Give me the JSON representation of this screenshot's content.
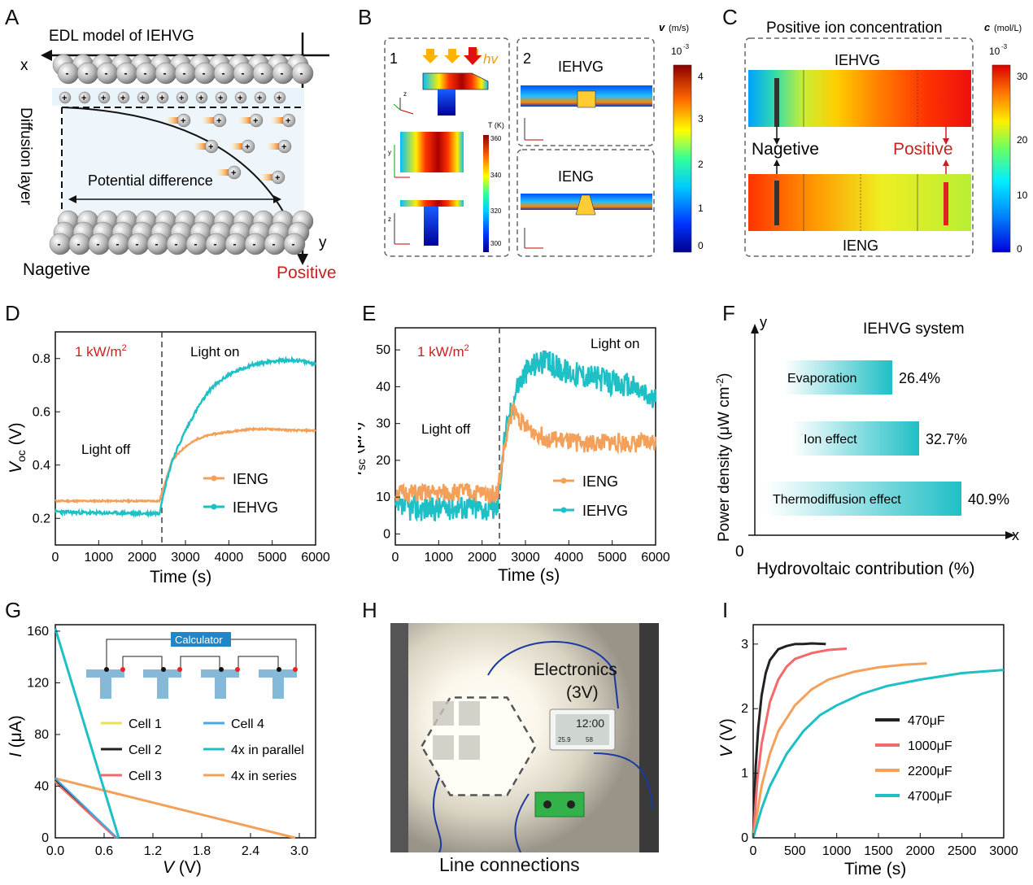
{
  "labels": {
    "A": "A",
    "B": "B",
    "C": "C",
    "D": "D",
    "E": "E",
    "F": "F",
    "G": "G",
    "H": "H",
    "I": "I"
  },
  "panelA": {
    "title": "EDL model of IEHVG",
    "x": "x",
    "y": "y",
    "diffusion": "Diffusion layer",
    "potential": "Potential difference",
    "negative": "Nagetive",
    "positive": "Positive"
  },
  "panelB": {
    "sub1": "1",
    "sub2": "2",
    "hv": "hv",
    "iehvg": "IEHVG",
    "ieng": "IENG",
    "tunit": "T (K)",
    "tticks": [
      "360",
      "340",
      "320",
      "300"
    ],
    "vunit": "(m/s)",
    "vsym": "v",
    "vexp": "10",
    "vexpsup": "-3",
    "vticks": [
      "4",
      "3",
      "2",
      "1",
      "0"
    ],
    "axis": {
      "x": "x",
      "y": "y",
      "z": "z"
    }
  },
  "panelC": {
    "title": "Positive ion concentration",
    "csym": "c",
    "cunit": "(mol/L)",
    "cexp": "10",
    "cexpsup": "-3",
    "cticks": [
      "30",
      "20",
      "10",
      "0"
    ],
    "iehvg": "IEHVG",
    "ieng": "IENG",
    "negative": "Nagetive",
    "positive": "Positive"
  },
  "panelD": {
    "ylabel_main": "V",
    "ylabel_sub": "oc",
    "ylabel_unit": " (V)",
    "xlabel": "Time (s)",
    "intensity": "1 kW/m",
    "intensity_sup": "2",
    "light_on": "Light on",
    "light_off": "Light off",
    "xticks": [
      "0",
      "1000",
      "2000",
      "3000",
      "4000",
      "5000",
      "6000"
    ],
    "yticks": [
      "0.2",
      "0.4",
      "0.6",
      "0.8"
    ]
  },
  "panelE": {
    "ylabel_main": "I",
    "ylabel_sub": "sc",
    "ylabel_unit": " (μA)",
    "xlabel": "Time (s)",
    "intensity": "1 kW/m",
    "intensity_sup": "2",
    "light_on": "Light on",
    "light_off": "Light off",
    "xticks": [
      "0",
      "1000",
      "2000",
      "3000",
      "4000",
      "5000",
      "6000"
    ],
    "yticks": [
      "0",
      "10",
      "20",
      "30",
      "40",
      "50"
    ]
  },
  "panelF": {
    "title": "IEHVG system",
    "ylabel": "Power density (μW cm",
    "ylabel_sup": "-2",
    "ylabel_end": ")",
    "xlabel": "Hydrovoltaic  contribution (%)",
    "origin": "0",
    "x": "x",
    "y": "y"
  },
  "panelG": {
    "xlabel": "V",
    "xunit": " (V)",
    "ylabel": "I",
    "yunit": " (μA)",
    "calculator": "Calculator",
    "xticks": [
      "0.0",
      "0.6",
      "1.2",
      "1.8",
      "2.4",
      "3.0"
    ],
    "yticks": [
      "0",
      "40",
      "80",
      "120",
      "160"
    ]
  },
  "panelH": {
    "electronics": "Electronics",
    "voltage": "(3V)",
    "caption": "Line connections",
    "lcd_main": "12:00",
    "lcd_t": "25.9",
    "lcd_h": "58"
  },
  "panelI": {
    "xlabel": "Time (s)",
    "ylabel": "V",
    "yunit": " (V)",
    "xticks": [
      "0",
      "500",
      "1000",
      "1500",
      "2000",
      "2500",
      "3000"
    ],
    "yticks": [
      "0",
      "1",
      "2",
      "3"
    ]
  },
  "colors": {
    "ieng": "#f2a05a",
    "iehvg": "#1fbfc6",
    "red": "#cc1f1f",
    "black": "#222222",
    "cell1": "#e8e25a",
    "cell3": "#ee6a6a",
    "cell4": "#4aa8e8"
  },
  "chart_data": [
    {
      "type": "line",
      "id": "D",
      "xlabel": "Time (s)",
      "ylabel": "Voc (V)",
      "xlim": [
        0,
        6000
      ],
      "ylim": [
        0.1,
        0.9
      ],
      "series": [
        {
          "name": "IENG",
          "x": [
            0,
            500,
            1000,
            1500,
            2000,
            2400,
            2500,
            2700,
            3000,
            3300,
            3600,
            4000,
            4500,
            5000,
            5500,
            6000
          ],
          "values": [
            0.265,
            0.265,
            0.265,
            0.265,
            0.265,
            0.265,
            0.32,
            0.42,
            0.47,
            0.5,
            0.515,
            0.525,
            0.535,
            0.535,
            0.53,
            0.53
          ]
        },
        {
          "name": "IEHVG",
          "x": [
            0,
            500,
            1000,
            1500,
            2000,
            2400,
            2500,
            2700,
            3000,
            3300,
            3600,
            4000,
            4500,
            5000,
            5500,
            6000
          ],
          "values": [
            0.225,
            0.222,
            0.22,
            0.22,
            0.218,
            0.22,
            0.3,
            0.42,
            0.53,
            0.62,
            0.69,
            0.74,
            0.775,
            0.79,
            0.795,
            0.78
          ]
        }
      ]
    },
    {
      "type": "line",
      "id": "E",
      "xlabel": "Time (s)",
      "ylabel": "Isc (μA)",
      "xlim": [
        0,
        6000
      ],
      "ylim": [
        -3,
        56
      ],
      "series": [
        {
          "name": "IENG",
          "x": [
            0,
            500,
            1000,
            1500,
            2000,
            2350,
            2500,
            2700,
            3000,
            3500,
            4000,
            4500,
            5000,
            5500,
            6000
          ],
          "values": [
            11,
            11,
            11,
            11.5,
            11,
            11,
            22,
            34,
            29,
            26,
            25,
            24.5,
            25,
            24.5,
            25
          ]
        },
        {
          "name": "IEHVG",
          "x": [
            0,
            500,
            1000,
            1500,
            2000,
            2350,
            2500,
            2800,
            3000,
            3300,
            3600,
            4000,
            4500,
            5000,
            5500,
            6000
          ],
          "values": [
            7,
            7,
            7,
            7.5,
            7,
            7,
            25,
            40,
            44,
            47,
            46,
            44,
            43,
            41,
            40,
            36
          ]
        }
      ]
    },
    {
      "type": "bar",
      "id": "F",
      "title": "IEHVG system",
      "xlabel": "Hydrovoltaic  contribution (%)",
      "ylabel": "Power density (μW cm-2)",
      "categories": [
        "Evaporation",
        "Ion effect",
        "Thermodiffusion effect"
      ],
      "values": [
        26.4,
        32.7,
        40.9
      ],
      "labels": [
        "26.4%",
        "32.7%",
        "40.9%"
      ]
    },
    {
      "type": "line",
      "id": "G",
      "xlabel": "V (V)",
      "ylabel": "I (μA)",
      "xlim": [
        0,
        3.2
      ],
      "ylim": [
        0,
        165
      ],
      "series": [
        {
          "name": "Cell 1",
          "x": [
            0,
            0.76
          ],
          "values": [
            44,
            0
          ]
        },
        {
          "name": "Cell 2",
          "x": [
            0,
            0.75
          ],
          "values": [
            45,
            0
          ]
        },
        {
          "name": "Cell 3",
          "x": [
            0,
            0.74
          ],
          "values": [
            43,
            0
          ]
        },
        {
          "name": "Cell 4",
          "x": [
            0,
            0.76
          ],
          "values": [
            46,
            0
          ]
        },
        {
          "name": "4x in parallel",
          "x": [
            0,
            0.78
          ],
          "values": [
            162,
            0
          ]
        },
        {
          "name": "4x in series",
          "x": [
            0,
            2.95
          ],
          "values": [
            46,
            0
          ]
        }
      ]
    },
    {
      "type": "line",
      "id": "I",
      "xlabel": "Time (s)",
      "ylabel": "V (V)",
      "xlim": [
        0,
        3000
      ],
      "ylim": [
        0,
        3.3
      ],
      "series": [
        {
          "name": "470μF",
          "x": [
            0,
            30,
            60,
            100,
            150,
            200,
            300,
            400,
            500,
            600,
            700,
            870
          ],
          "values": [
            0,
            1.1,
            1.7,
            2.2,
            2.55,
            2.75,
            2.92,
            2.97,
            3.0,
            3.0,
            3.01,
            3.0
          ]
        },
        {
          "name": "1000μF",
          "x": [
            0,
            50,
            100,
            200,
            300,
            400,
            500,
            700,
            900,
            1120
          ],
          "values": [
            0,
            0.9,
            1.45,
            2.1,
            2.45,
            2.65,
            2.77,
            2.86,
            2.91,
            2.93
          ]
        },
        {
          "name": "2200μF",
          "x": [
            0,
            100,
            200,
            300,
            500,
            700,
            900,
            1200,
            1500,
            1800,
            2080
          ],
          "values": [
            0,
            0.8,
            1.3,
            1.65,
            2.05,
            2.3,
            2.45,
            2.57,
            2.64,
            2.68,
            2.7
          ]
        },
        {
          "name": "4700μF",
          "x": [
            0,
            100,
            200,
            400,
            600,
            800,
            1000,
            1300,
            1600,
            2000,
            2500,
            3000
          ],
          "values": [
            0,
            0.45,
            0.8,
            1.3,
            1.65,
            1.9,
            2.05,
            2.23,
            2.35,
            2.45,
            2.55,
            2.6
          ]
        }
      ]
    }
  ]
}
